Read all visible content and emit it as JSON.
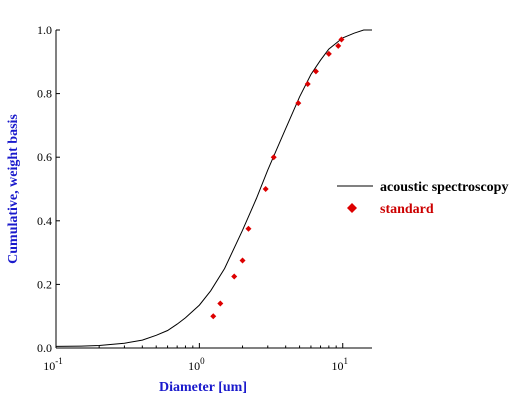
{
  "colors": {
    "axis_label": "#1a1acc",
    "curve": "#000000",
    "markers": "#dd0000",
    "standard_label": "#cc0000",
    "axes": "#000000"
  },
  "chart_data": {
    "type": "scatter",
    "xlabel": "Diameter [um]",
    "ylabel": "Cumulative, weight basis",
    "xscale": "log",
    "xlim": [
      0.1,
      16
    ],
    "ylim": [
      0,
      1.0
    ],
    "x_ticks": [
      {
        "value": 0.1,
        "base": "10",
        "exp": "-1"
      },
      {
        "value": 1,
        "base": "10",
        "exp": "0"
      },
      {
        "value": 10,
        "base": "10",
        "exp": "1"
      }
    ],
    "y_ticks": [
      {
        "value": 0.0,
        "label": "0.0"
      },
      {
        "value": 0.2,
        "label": "0.2"
      },
      {
        "value": 0.4,
        "label": "0.4"
      },
      {
        "value": 0.6,
        "label": "0.6"
      },
      {
        "value": 0.8,
        "label": "0.8"
      },
      {
        "value": 1.0,
        "label": "1.0"
      }
    ],
    "grid": false,
    "legend_position": "right",
    "series": [
      {
        "name": "acoustic spectroscopy",
        "kind": "line",
        "color": "#000000",
        "x": [
          0.1,
          0.15,
          0.2,
          0.3,
          0.4,
          0.5,
          0.6,
          0.7,
          0.8,
          1.0,
          1.2,
          1.5,
          2.0,
          2.5,
          3.0,
          3.5,
          4.0,
          5.0,
          6.0,
          7.0,
          8.0,
          10.0,
          12.0,
          14.0,
          16.0
        ],
        "y": [
          0.005,
          0.006,
          0.008,
          0.015,
          0.025,
          0.04,
          0.055,
          0.075,
          0.095,
          0.135,
          0.18,
          0.25,
          0.37,
          0.47,
          0.56,
          0.63,
          0.69,
          0.79,
          0.86,
          0.905,
          0.94,
          0.975,
          0.99,
          1.0,
          1.0
        ]
      },
      {
        "name": "standard",
        "kind": "scatter",
        "color": "#dd0000",
        "x": [
          1.25,
          1.4,
          1.75,
          2.0,
          2.2,
          2.9,
          3.3,
          4.9,
          5.7,
          6.5,
          8.0,
          9.3,
          9.8
        ],
        "y": [
          0.1,
          0.14,
          0.225,
          0.275,
          0.375,
          0.5,
          0.6,
          0.77,
          0.83,
          0.87,
          0.925,
          0.95,
          0.97
        ]
      }
    ]
  }
}
